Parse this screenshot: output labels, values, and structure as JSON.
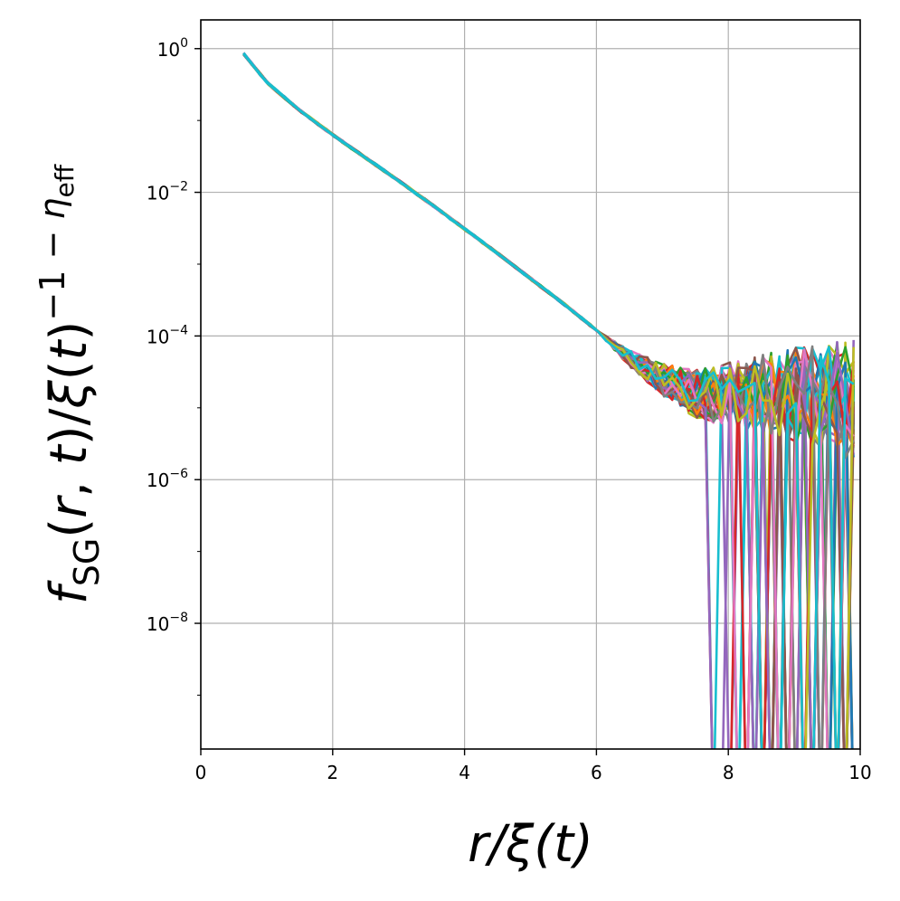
{
  "chart_data": {
    "type": "line",
    "xlabel": "r/ξ(t)",
    "ylabel": "f_SG(r, t)/ξ(t)^(−1 − η_eff)",
    "xlim": [
      0,
      10
    ],
    "ylim_log10": [
      -9.75,
      0.4
    ],
    "y_scale": "log",
    "grid": true,
    "legend": "none",
    "x_ticks": [
      0,
      2,
      4,
      6,
      8,
      10
    ],
    "y_ticks": [
      {
        "exp": 0,
        "base": "10",
        "sup": "0"
      },
      {
        "exp": -2,
        "base": "10",
        "sup": "−2"
      },
      {
        "exp": -4,
        "base": "10",
        "sup": "−4"
      },
      {
        "exp": -6,
        "base": "10",
        "sup": "−6"
      },
      {
        "exp": -8,
        "base": "10",
        "sup": "−8"
      }
    ],
    "series_count": 40,
    "colors": [
      "#1f77b4",
      "#ff7f0e",
      "#2ca02c",
      "#d62728",
      "#9467bd",
      "#8c564b",
      "#e377c2",
      "#7f7f7f",
      "#bcbd22",
      "#17becf"
    ],
    "master_curve": {
      "x": [
        0.65,
        1,
        1.5,
        2,
        2.5,
        3,
        3.5,
        4,
        4.5,
        5,
        5.5,
        6,
        6.5,
        7,
        7.5
      ],
      "log10_y": [
        -0.07,
        -0.47,
        -0.86,
        -1.2,
        -1.52,
        -1.84,
        -2.17,
        -2.51,
        -2.85,
        -3.2,
        -3.55,
        -3.92,
        -4.3,
        -4.58,
        -4.77
      ]
    },
    "noise_floor_log10_y": -4.9,
    "dropout_x_range": [
      7.65,
      10
    ]
  }
}
